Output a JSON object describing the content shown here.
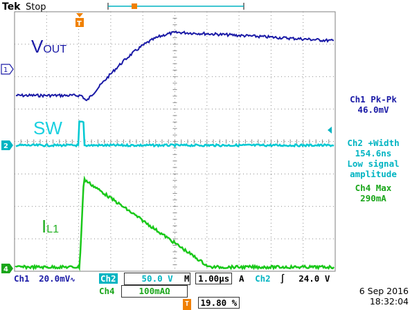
{
  "header": {
    "brand": "Tek",
    "run_status": "Stop"
  },
  "labels": {
    "vout_main": "V",
    "vout_sub": "OUT",
    "sw": "SW",
    "il1_main": "I",
    "il1_sub": "L1"
  },
  "channel_markers": {
    "ch1": "1",
    "ch2": "2",
    "ch4": "4",
    "trigger": "T"
  },
  "measurements": {
    "ch1_title": "Ch1 Pk-Pk",
    "ch1_value": "46.0mV",
    "ch2_title": "Ch2 +Width",
    "ch2_value": "154.6ns",
    "ch2_note_1": "Low signal",
    "ch2_note_2": "amplitude",
    "ch4_title": "Ch4 Max",
    "ch4_value": "290mA"
  },
  "bottom_bar": {
    "ch1_label": "Ch1",
    "ch1_scale": "20.0mV",
    "ch2_label": "Ch2",
    "ch2_scale": "50.0 V",
    "ch4_label": "Ch4",
    "ch4_scale": "100mAΩ",
    "timebase_prefix": "M",
    "timebase": "1.00µs",
    "trigger_mode": "A",
    "trigger_source": "Ch2",
    "trigger_level": "24.0 V",
    "trigger_position": "19.80 %",
    "date": "6 Sep  2016",
    "time": "18:32:04"
  },
  "colors": {
    "ch1": "#1a1aa6",
    "ch2": "#00c8d2",
    "ch4": "#1ac81a",
    "trigger": "#f08000",
    "grid": "#7f7f7f"
  }
}
